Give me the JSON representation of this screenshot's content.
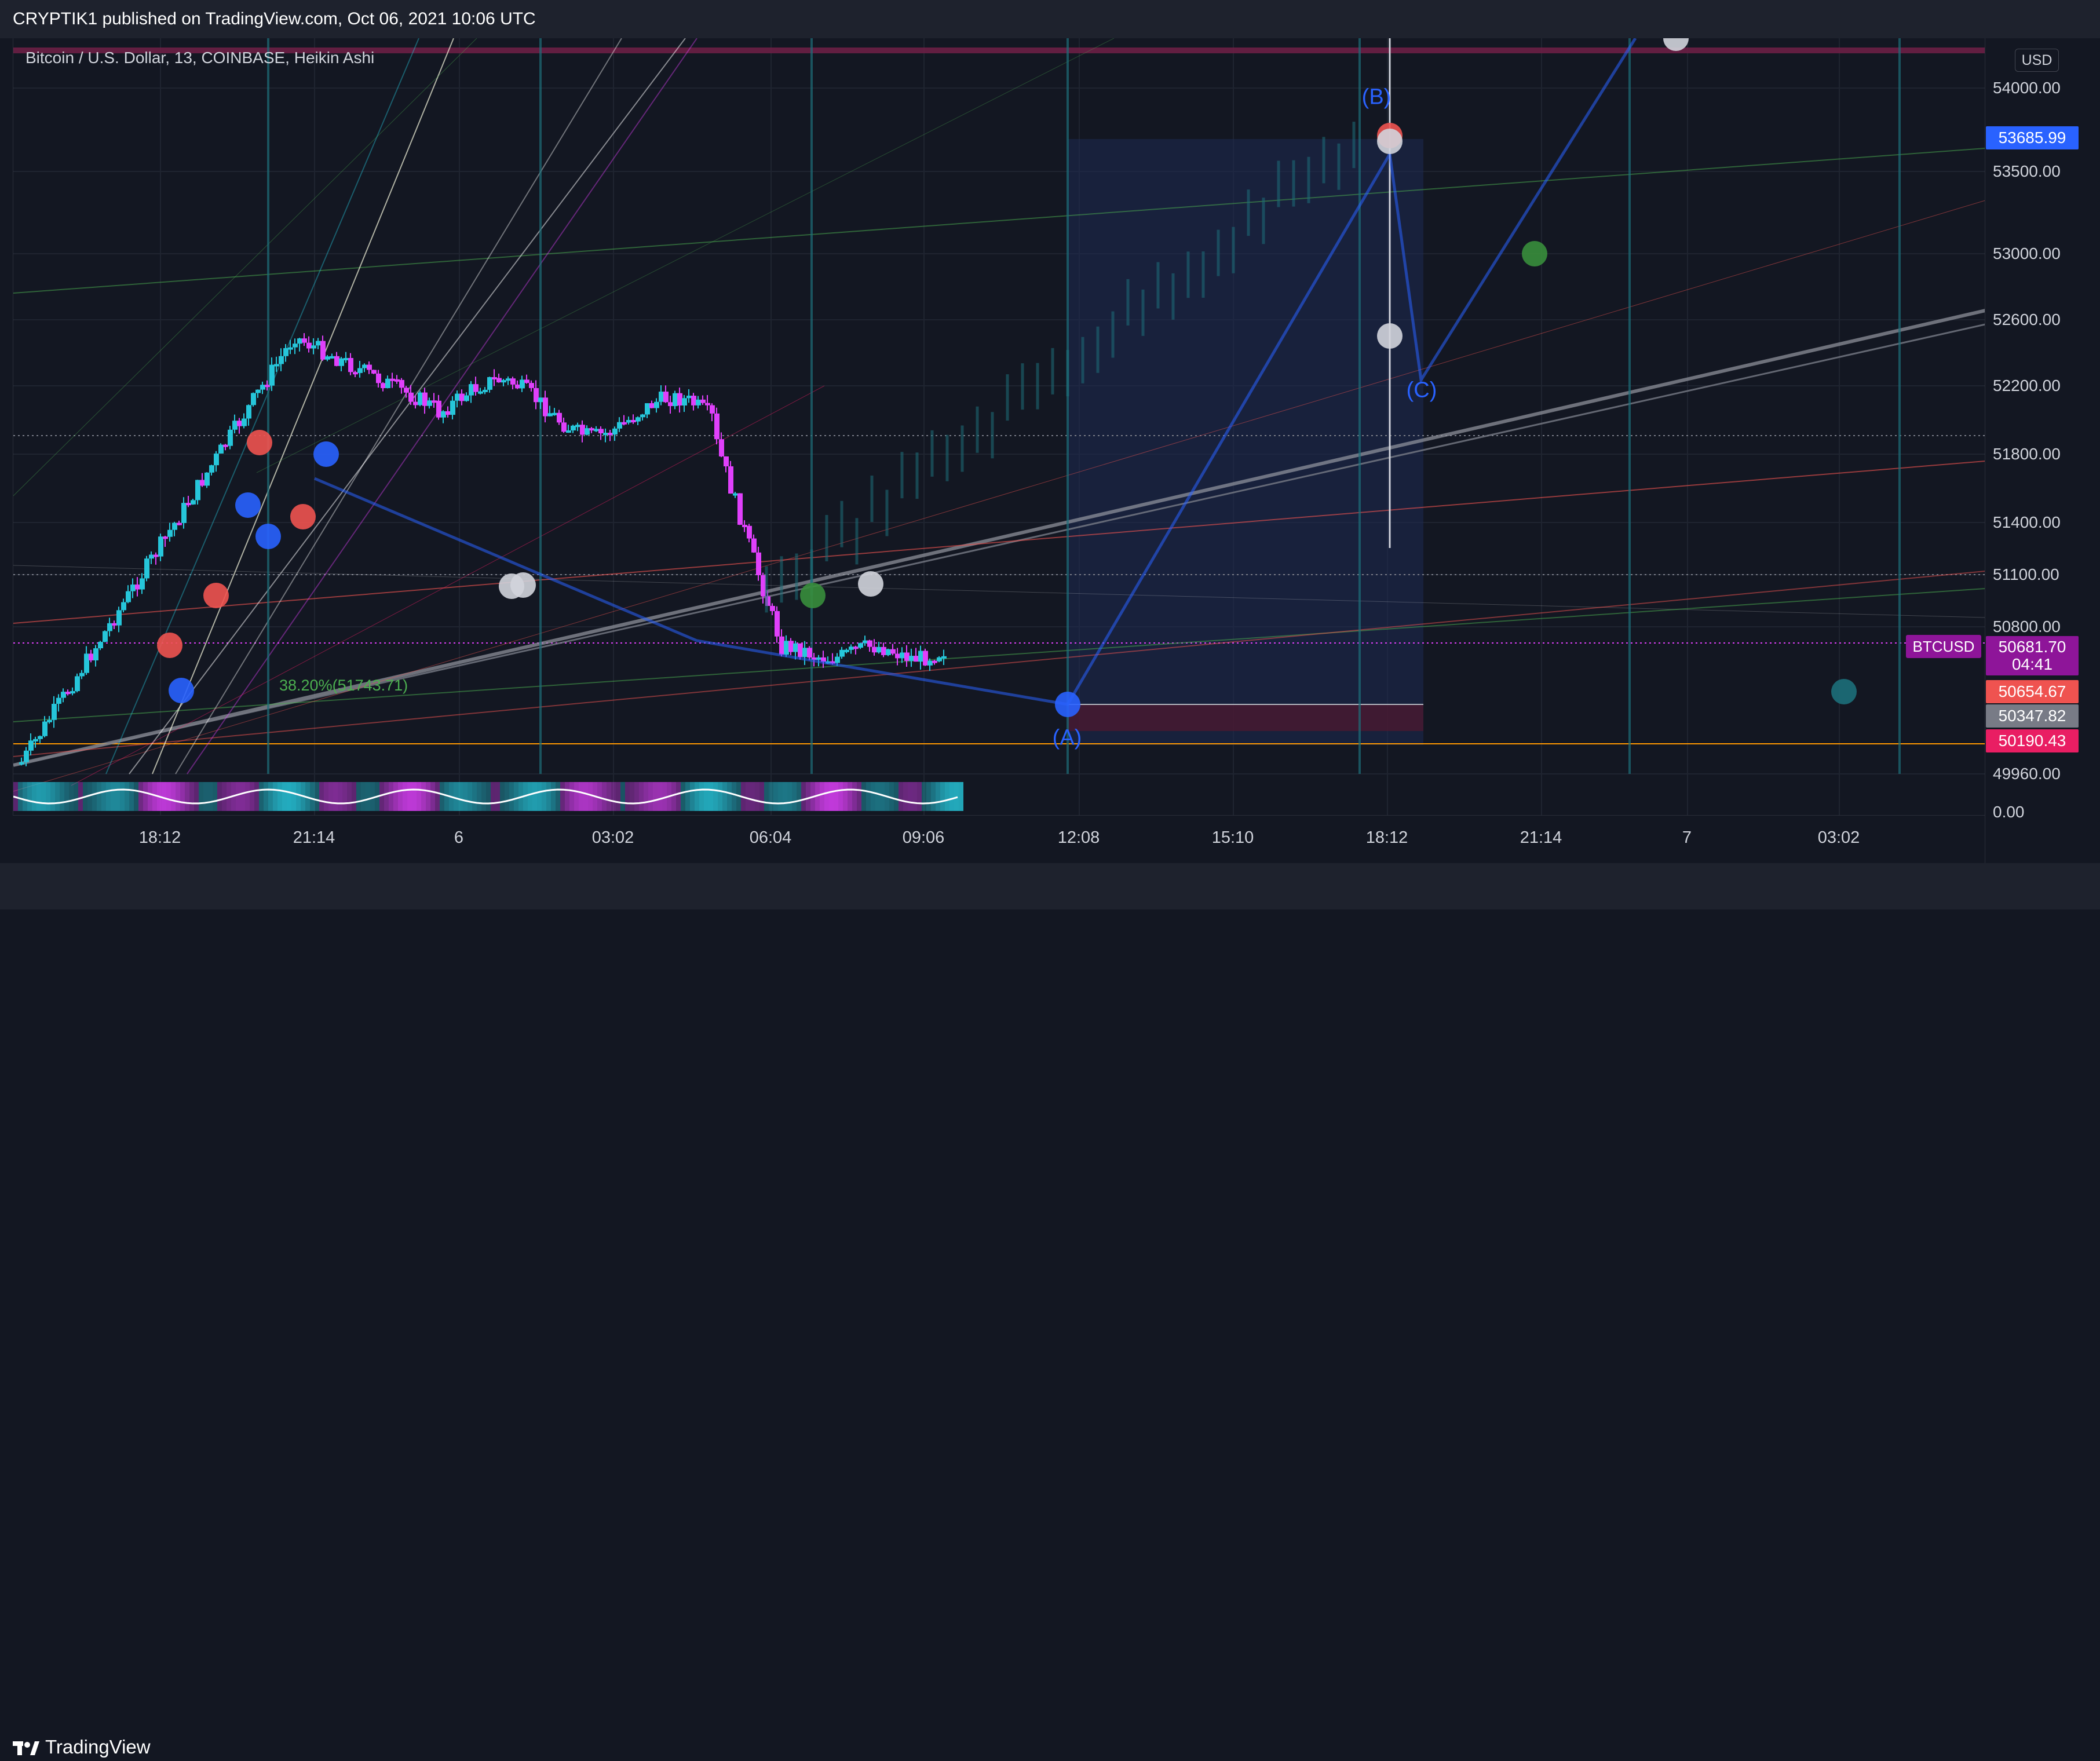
{
  "header": {
    "publisher": "CRYPTIK1 published on TradingView.com, Oct 06, 2021 10:06 UTC"
  },
  "chart_data": {
    "type": "candlestick",
    "title": "Bitcoin / U.S. Dollar, 13, COINBASE, Heikin Ashi",
    "currency": "USD",
    "y_ticks": [
      "54000.00",
      "53500.00",
      "53000.00",
      "52600.00",
      "52200.00",
      "51800.00",
      "51400.00",
      "51100.00",
      "50800.00",
      "49960.00",
      "0.00"
    ],
    "x_ticks": [
      "18:12",
      "21:14",
      "6",
      "03:02",
      "06:04",
      "09:06",
      "12:08",
      "15:10",
      "18:12",
      "21:14",
      "7",
      "03:02"
    ],
    "price_labels": {
      "last": "53685.99",
      "symbol": "BTCUSD",
      "current": "50681.70",
      "countdown": "04:41",
      "level_red": "50654.67",
      "level_gray": "50347.82",
      "level_crimson": "50190.43"
    },
    "annotations": {
      "wave_a": "(A)",
      "wave_b": "(B)",
      "wave_c": "(C)",
      "fib": "38.20%(51743.71)"
    },
    "colors": {
      "background": "#131722",
      "bull_candle": "#26c6da",
      "bear_candle": "#e040fb",
      "wave_line": "#2962ff",
      "last_tag": "#2962ff",
      "symbol_tag": "#8e1599",
      "red_tag": "#ef5350",
      "gray_tag": "#787b86",
      "crimson_tag": "#e91e63"
    }
  },
  "footer": {
    "brand": "TradingView"
  }
}
